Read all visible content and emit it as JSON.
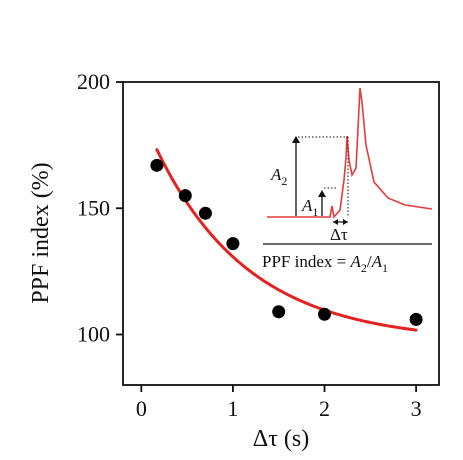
{
  "chart_data": {
    "type": "scatter",
    "title": "",
    "xlabel": "Δτ (s)",
    "ylabel": "PPF index (%)",
    "xlim": [
      -0.2,
      3.25
    ],
    "ylim": [
      80,
      200
    ],
    "x_ticks": [
      0,
      1,
      2,
      3
    ],
    "x_tick_labels": [
      "0",
      "1",
      "2",
      "3"
    ],
    "y_ticks": [
      100,
      150,
      200
    ],
    "y_tick_labels": [
      "100",
      "150",
      "200"
    ],
    "grid": false,
    "series": [
      {
        "kind": "points",
        "color": "#000000",
        "points": [
          {
            "x": 0.17,
            "y": 167
          },
          {
            "x": 0.48,
            "y": 155
          },
          {
            "x": 0.7,
            "y": 148
          },
          {
            "x": 1.0,
            "y": 136
          },
          {
            "x": 1.5,
            "y": 109
          },
          {
            "x": 2.0,
            "y": 108
          },
          {
            "x": 3.0,
            "y": 106
          }
        ]
      },
      {
        "kind": "fit-line",
        "color": "#e32222",
        "x_range": [
          0.17,
          3.0
        ],
        "model": {
          "y0": 97,
          "a": 90,
          "tau": 1.02
        }
      }
    ],
    "inset": {
      "formula_prefix": "PPF index = ",
      "formula_a2": "A",
      "formula_a2_sub": "2",
      "formula_sep": "/",
      "formula_a1": "A",
      "formula_a1_sub": "1",
      "label_a2": "A",
      "label_a2_sub": "2",
      "label_a1": "A",
      "label_a1_sub": "1",
      "label_dtau": "Δτ",
      "trace_color": "#e83a3a"
    }
  }
}
